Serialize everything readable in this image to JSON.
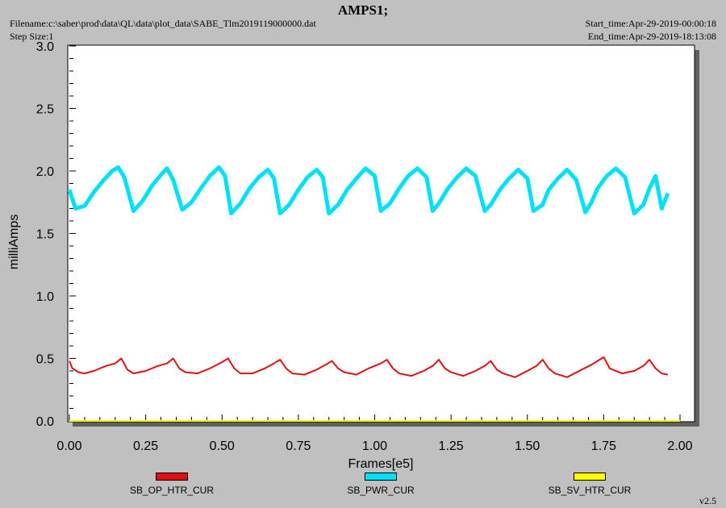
{
  "header": {
    "title": "AMPS1;",
    "filename": "Filename:c:\\saber\\prod\\data\\QL\\data\\plot_data\\SABE_Tlm2019119000000.dat",
    "step_size": "Step Size:1",
    "start_time": "Start_time:Apr-29-2019-00:00:18",
    "end_time": "End_time:Apr-29-2019-18:13:08",
    "version": "v2.5"
  },
  "chart_data": {
    "type": "line",
    "title": "AMPS1;",
    "xlabel": "Frames[e5]",
    "ylabel": "milliAmps",
    "xlim": [
      0,
      2.0
    ],
    "ylim": [
      0,
      3.0
    ],
    "x_ticks": [
      "0.00",
      "0.25",
      "0.50",
      "0.75",
      "1.00",
      "1.25",
      "1.50",
      "1.75",
      "2.00"
    ],
    "y_ticks": [
      "0.0",
      "0.5",
      "1.0",
      "1.5",
      "2.0",
      "2.5",
      "3.0"
    ],
    "grid": false,
    "legend_position": "bottom",
    "series": [
      {
        "name": "SB_OP_HTR_CUR",
        "color": "#e01010",
        "x": [
          0.0,
          0.01,
          0.03,
          0.05,
          0.08,
          0.12,
          0.15,
          0.17,
          0.19,
          0.21,
          0.25,
          0.29,
          0.32,
          0.34,
          0.36,
          0.38,
          0.42,
          0.46,
          0.5,
          0.52,
          0.54,
          0.56,
          0.6,
          0.64,
          0.67,
          0.69,
          0.71,
          0.73,
          0.77,
          0.81,
          0.84,
          0.86,
          0.88,
          0.9,
          0.94,
          0.98,
          1.02,
          1.04,
          1.06,
          1.08,
          1.12,
          1.16,
          1.19,
          1.21,
          1.23,
          1.25,
          1.29,
          1.33,
          1.36,
          1.38,
          1.4,
          1.42,
          1.46,
          1.5,
          1.53,
          1.55,
          1.57,
          1.59,
          1.63,
          1.67,
          1.71,
          1.73,
          1.75,
          1.77,
          1.81,
          1.85,
          1.88,
          1.9,
          1.92,
          1.94,
          1.96
        ],
        "y": [
          0.48,
          0.42,
          0.39,
          0.38,
          0.4,
          0.44,
          0.46,
          0.5,
          0.41,
          0.38,
          0.4,
          0.44,
          0.46,
          0.5,
          0.42,
          0.39,
          0.38,
          0.42,
          0.47,
          0.5,
          0.42,
          0.38,
          0.38,
          0.42,
          0.46,
          0.49,
          0.42,
          0.38,
          0.37,
          0.41,
          0.45,
          0.48,
          0.42,
          0.39,
          0.37,
          0.42,
          0.46,
          0.49,
          0.42,
          0.38,
          0.36,
          0.4,
          0.44,
          0.49,
          0.42,
          0.39,
          0.36,
          0.4,
          0.44,
          0.48,
          0.41,
          0.38,
          0.35,
          0.4,
          0.44,
          0.49,
          0.42,
          0.38,
          0.35,
          0.4,
          0.45,
          0.48,
          0.51,
          0.42,
          0.38,
          0.4,
          0.44,
          0.49,
          0.42,
          0.38,
          0.37
        ]
      },
      {
        "name": "SB_PWR_CUR",
        "color": "#00e0f8",
        "x": [
          0.0,
          0.02,
          0.05,
          0.08,
          0.11,
          0.14,
          0.16,
          0.18,
          0.21,
          0.24,
          0.27,
          0.3,
          0.32,
          0.34,
          0.37,
          0.4,
          0.43,
          0.46,
          0.49,
          0.51,
          0.53,
          0.56,
          0.59,
          0.62,
          0.65,
          0.67,
          0.69,
          0.72,
          0.75,
          0.78,
          0.81,
          0.83,
          0.85,
          0.88,
          0.91,
          0.94,
          0.97,
          1.0,
          1.02,
          1.05,
          1.08,
          1.11,
          1.14,
          1.17,
          1.19,
          1.21,
          1.24,
          1.27,
          1.3,
          1.33,
          1.36,
          1.38,
          1.41,
          1.44,
          1.47,
          1.5,
          1.52,
          1.55,
          1.57,
          1.6,
          1.63,
          1.66,
          1.69,
          1.71,
          1.73,
          1.76,
          1.79,
          1.82,
          1.85,
          1.88,
          1.9,
          1.92,
          1.94,
          1.96
        ],
        "y": [
          1.85,
          1.7,
          1.72,
          1.83,
          1.92,
          2.0,
          2.03,
          1.95,
          1.68,
          1.76,
          1.88,
          1.97,
          2.02,
          1.93,
          1.69,
          1.75,
          1.86,
          1.96,
          2.03,
          1.96,
          1.66,
          1.74,
          1.86,
          1.95,
          2.01,
          1.94,
          1.66,
          1.73,
          1.85,
          1.95,
          2.01,
          1.95,
          1.66,
          1.73,
          1.85,
          1.94,
          2.02,
          1.96,
          1.68,
          1.74,
          1.86,
          1.96,
          2.02,
          1.95,
          1.68,
          1.74,
          1.86,
          1.95,
          2.02,
          1.96,
          1.68,
          1.73,
          1.85,
          1.94,
          2.01,
          1.94,
          1.68,
          1.73,
          1.85,
          1.94,
          2.01,
          1.93,
          1.67,
          1.75,
          1.86,
          1.96,
          2.02,
          1.95,
          1.66,
          1.73,
          1.86,
          1.96,
          1.7,
          1.82
        ]
      },
      {
        "name": "SB_SV_HTR_CUR",
        "color": "#ffff00",
        "x": [
          0.0,
          2.0
        ],
        "y": [
          0.0,
          0.0
        ]
      }
    ]
  }
}
